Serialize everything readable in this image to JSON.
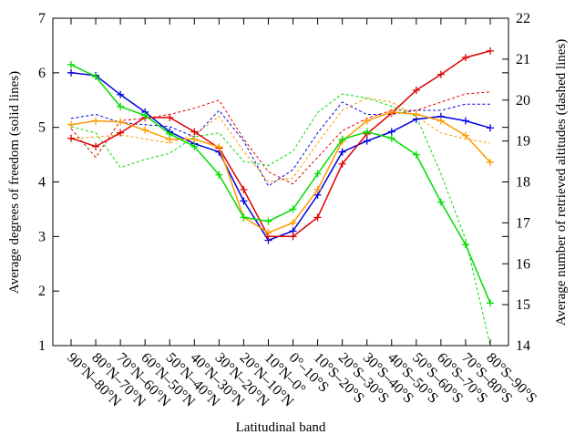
{
  "chart_data": {
    "type": "line",
    "xlabel": "Latitudinal band",
    "ylabel": "Average degrees of freedom (solid lines)",
    "y2label": "Average number of retrieved altitudes (dashed lines)",
    "ylim": [
      1,
      7
    ],
    "y2lim": [
      14,
      22
    ],
    "yticks": [
      "1",
      "2",
      "3",
      "4",
      "5",
      "6",
      "7"
    ],
    "y2ticks": [
      "14",
      "15",
      "16",
      "17",
      "18",
      "19",
      "20",
      "21",
      "22"
    ],
    "grid": false,
    "legend": "none",
    "categories": [
      "90°N–80°N",
      "80°N–70°N",
      "70°N–60°N",
      "60°N–50°N",
      "50°N–40°N",
      "40°N–30°N",
      "30°N–20°N",
      "20°N–10°N",
      "10°N–0°",
      "0°–10°S",
      "10°S–20°S",
      "20°S–30°S",
      "30°S–40°S",
      "40°S–50°S",
      "50°S–60°S",
      "60°S–70°S",
      "70°S–80°S",
      "80°S–90°S"
    ],
    "solid_series": [
      {
        "color": "#0000dd",
        "marker": "plus",
        "values": [
          6.0,
          5.95,
          5.6,
          5.28,
          4.92,
          4.7,
          4.55,
          3.65,
          2.93,
          3.1,
          3.76,
          4.55,
          4.75,
          4.92,
          5.15,
          5.2,
          5.12,
          4.99
        ]
      },
      {
        "color": "#dd0000",
        "marker": "plus",
        "values": [
          4.8,
          4.65,
          4.9,
          5.18,
          5.18,
          4.92,
          4.62,
          3.86,
          3.0,
          3.0,
          3.35,
          4.33,
          4.88,
          5.26,
          5.68,
          5.97,
          6.28,
          6.4
        ]
      },
      {
        "color": "#ff9900",
        "marker": "plus",
        "values": [
          5.05,
          5.12,
          5.1,
          4.95,
          4.78,
          4.78,
          4.64,
          3.35,
          3.07,
          3.25,
          3.86,
          4.75,
          5.12,
          5.28,
          5.24,
          5.12,
          4.85,
          4.36
        ]
      },
      {
        "color": "#00dd00",
        "marker": "plus",
        "values": [
          6.15,
          5.93,
          5.38,
          5.22,
          4.88,
          4.65,
          4.13,
          3.35,
          3.28,
          3.5,
          4.15,
          4.78,
          4.92,
          4.8,
          4.5,
          3.63,
          2.85,
          1.78
        ]
      }
    ],
    "dashed_series": [
      {
        "color": "#0000dd",
        "values": [
          19.55,
          19.65,
          19.45,
          19.4,
          19.35,
          19.1,
          19.75,
          19.0,
          17.9,
          18.3,
          19.2,
          19.95,
          19.65,
          19.65,
          19.75,
          19.75,
          19.9,
          19.9
        ]
      },
      {
        "color": "#dd0000",
        "values": [
          19.3,
          18.6,
          19.5,
          19.55,
          19.65,
          19.8,
          20.0,
          19.05,
          18.25,
          17.95,
          18.6,
          19.25,
          19.55,
          19.75,
          19.75,
          19.95,
          20.15,
          20.2
        ]
      },
      {
        "color": "#ff9900",
        "values": [
          19.05,
          19.1,
          19.15,
          19.05,
          18.95,
          19.15,
          19.6,
          18.75,
          18.0,
          18.1,
          18.95,
          19.75,
          20.05,
          19.95,
          19.6,
          19.2,
          19.05,
          18.95
        ]
      },
      {
        "color": "#00dd00",
        "values": [
          19.35,
          19.2,
          18.35,
          18.55,
          18.7,
          19.1,
          19.2,
          18.5,
          18.4,
          18.75,
          19.7,
          20.15,
          20.05,
          19.85,
          19.6,
          18.2,
          16.6,
          14.0
        ]
      }
    ]
  }
}
